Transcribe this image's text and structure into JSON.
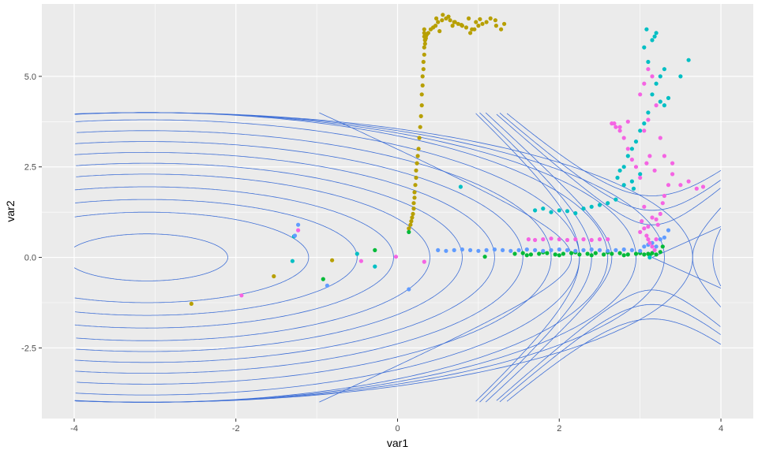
{
  "chart_data": {
    "type": "scatter",
    "title": "",
    "xlabel": "var1",
    "ylabel": "var2",
    "xlim": [
      -4.4,
      4.4
    ],
    "ylim": [
      -4.45,
      7.0
    ],
    "x_ticks": [
      -4,
      -2,
      0,
      2,
      4
    ],
    "x_tick_labels": [
      "-4",
      "-2",
      "0",
      "2",
      "4"
    ],
    "y_ticks": [
      -2.5,
      0,
      2.5,
      5
    ],
    "y_tick_labels": [
      "-2.5",
      "0.0",
      "2.5",
      "5.0"
    ],
    "grid": true,
    "legend": "none",
    "panel_color": "#ebebeb",
    "grid_color": "#ffffff",
    "contour_color": "#3f6fd6",
    "contours": [
      {
        "type": "ellipse",
        "cx": -3.1,
        "cy": 0.0,
        "rx": 1.0,
        "ry": 0.65
      },
      {
        "type": "ellipse",
        "cx": -3.1,
        "cy": 0.0,
        "rx": 2.0,
        "ry": 1.25
      },
      {
        "type": "ellipse",
        "cx": -3.1,
        "cy": 0.0,
        "rx": 2.6,
        "ry": 1.6
      },
      {
        "type": "ellipse",
        "cx": -3.1,
        "cy": 0.0,
        "rx": 3.05,
        "ry": 1.95
      },
      {
        "type": "ellipse",
        "cx": -3.1,
        "cy": 0.0,
        "rx": 3.5,
        "ry": 2.3
      },
      {
        "type": "ellipse",
        "cx": -3.1,
        "cy": 0.0,
        "rx": 3.9,
        "ry": 2.6
      },
      {
        "type": "ellipse",
        "cx": -3.1,
        "cy": 0.0,
        "rx": 4.3,
        "ry": 2.9
      },
      {
        "type": "ellipse",
        "cx": -3.1,
        "cy": 0.0,
        "rx": 4.65,
        "ry": 3.2
      },
      {
        "type": "ellipse",
        "cx": -3.1,
        "cy": 0.0,
        "rx": 5.0,
        "ry": 3.5
      },
      {
        "type": "ellipse",
        "cx": -3.1,
        "cy": 0.0,
        "rx": 5.35,
        "ry": 3.8
      },
      {
        "type": "ellipse",
        "cx": -3.1,
        "cy": 0.0,
        "rx": 5.7,
        "ry": 4.0
      },
      {
        "type": "ellipse",
        "cx": -3.1,
        "cy": 0.0,
        "rx": 6.05,
        "ry": 4.0
      },
      {
        "type": "ellipse",
        "cx": -3.1,
        "cy": 0.0,
        "rx": 6.4,
        "ry": 4.0
      },
      {
        "type": "ellipse",
        "cx": -3.1,
        "cy": 0.0,
        "rx": 6.75,
        "ry": 4.0
      },
      {
        "type": "hyperbola",
        "cx": 3.15,
        "cy": 0.0,
        "a": 1.0,
        "b": 1.0,
        "k": -1
      },
      {
        "type": "hyperbola",
        "cx": 3.15,
        "cy": 0.0,
        "a": 0.45,
        "b": 0.9,
        "k": 1
      },
      {
        "type": "hyperbola",
        "cx": 3.15,
        "cy": 0.0,
        "a": 0.65,
        "b": 1.3,
        "k": 1
      },
      {
        "type": "hyperbola",
        "cx": 3.15,
        "cy": 0.0,
        "a": 0.85,
        "b": 1.7,
        "k": 1
      },
      {
        "type": "hyperbola",
        "cx": 3.15,
        "cy": 0.0,
        "a": 0.5,
        "b": 1.0,
        "k": -1
      },
      {
        "type": "hyperbola",
        "cx": 3.15,
        "cy": 0.0,
        "a": 0.75,
        "b": 1.5,
        "k": -1
      },
      {
        "type": "hyperbola",
        "cx": 3.15,
        "cy": 0.0,
        "a": 0.9,
        "b": 1.8,
        "k": -1
      },
      {
        "type": "line",
        "x1": 3.15,
        "y1": 0.0,
        "x2": 4.0,
        "y2": 0.85
      },
      {
        "type": "line",
        "x1": 3.15,
        "y1": 0.0,
        "x2": 4.0,
        "y2": -0.85
      }
    ],
    "series": [
      {
        "color": "#b79f00",
        "x": [
          -2.55,
          -1.53,
          -0.81,
          0.14,
          0.16,
          0.17,
          0.18,
          0.19,
          0.2,
          0.2,
          0.21,
          0.21,
          0.22,
          0.23,
          0.23,
          0.24,
          0.25,
          0.26,
          0.27,
          0.28,
          0.29,
          0.3,
          0.3,
          0.31,
          0.31,
          0.32,
          0.32,
          0.33,
          0.33,
          0.34,
          0.34,
          0.33,
          0.33,
          0.33,
          0.34,
          0.35,
          0.36,
          0.38,
          0.41,
          0.44,
          0.47,
          0.5,
          0.55,
          0.6,
          0.65,
          0.7,
          0.75,
          0.8,
          0.85,
          0.9,
          0.95,
          1.0,
          1.05,
          1.1,
          1.15,
          1.22,
          1.28,
          1.32,
          0.35,
          0.48,
          0.56,
          0.63,
          0.71,
          0.79,
          0.92,
          1.02,
          1.21,
          0.52,
          0.68,
          0.88,
          0.97
        ],
        "y": [
          -1.28,
          -0.52,
          -0.08,
          0.8,
          0.9,
          1.0,
          1.1,
          1.2,
          1.35,
          1.5,
          1.65,
          1.8,
          2.0,
          2.2,
          2.4,
          2.6,
          2.8,
          3.0,
          3.3,
          3.6,
          3.9,
          4.2,
          4.5,
          4.75,
          5.0,
          5.2,
          5.4,
          5.6,
          5.8,
          5.9,
          6.0,
          6.1,
          6.2,
          6.3,
          6.0,
          6.1,
          6.15,
          6.2,
          6.3,
          6.35,
          6.4,
          6.5,
          6.55,
          6.6,
          6.55,
          6.5,
          6.45,
          6.4,
          6.35,
          6.2,
          6.3,
          6.4,
          6.45,
          6.5,
          6.6,
          6.4,
          6.3,
          6.45,
          6.05,
          6.6,
          6.7,
          6.65,
          6.5,
          6.42,
          6.3,
          6.58,
          6.55,
          6.25,
          6.4,
          6.6,
          6.5
        ]
      },
      {
        "color": "#00ba38",
        "x": [
          -0.92,
          -0.28,
          0.14,
          1.08,
          1.45,
          1.55,
          1.65,
          1.75,
          1.85,
          1.95,
          2.05,
          2.15,
          2.25,
          2.35,
          2.45,
          2.55,
          2.65,
          2.75,
          2.85,
          2.95,
          3.0,
          3.05,
          3.1,
          3.15,
          3.2,
          3.25,
          3.28,
          1.6,
          1.8,
          2.0,
          2.2,
          2.4,
          2.6,
          2.8,
          3.12
        ],
        "y": [
          -0.6,
          0.2,
          0.7,
          0.02,
          0.1,
          0.12,
          0.08,
          0.1,
          0.12,
          0.08,
          0.1,
          0.12,
          0.08,
          0.1,
          0.12,
          0.08,
          0.1,
          0.12,
          0.08,
          0.1,
          0.12,
          0.08,
          0.1,
          0.12,
          0.08,
          0.15,
          0.3,
          0.06,
          0.14,
          0.06,
          0.14,
          0.06,
          0.14,
          0.06,
          0.05
        ]
      },
      {
        "color": "#00bfc4",
        "x": [
          -1.3,
          -1.28,
          -0.5,
          -0.28,
          0.78,
          1.7,
          1.8,
          1.9,
          2.0,
          2.1,
          2.2,
          2.3,
          2.4,
          2.5,
          2.6,
          2.7,
          2.8,
          2.9,
          2.72,
          2.75,
          2.8,
          2.85,
          2.9,
          2.95,
          3.0,
          3.05,
          3.1,
          3.15,
          3.2,
          3.25,
          3.3,
          3.1,
          3.05,
          3.15,
          3.2,
          3.08,
          3.18,
          3.5,
          3.6,
          3.3,
          3.35,
          3.25,
          2.92,
          3.0,
          3.12
        ],
        "y": [
          -0.1,
          0.58,
          0.1,
          -0.25,
          1.95,
          1.3,
          1.35,
          1.25,
          1.3,
          1.28,
          1.22,
          1.35,
          1.4,
          1.45,
          1.5,
          1.6,
          2.0,
          2.1,
          2.2,
          2.4,
          2.5,
          2.8,
          3.0,
          3.2,
          3.5,
          3.7,
          4.0,
          4.5,
          4.8,
          5.0,
          5.2,
          5.4,
          5.8,
          6.0,
          6.2,
          6.3,
          6.1,
          5.0,
          5.45,
          4.2,
          4.4,
          4.3,
          1.9,
          2.3,
          0.0
        ]
      },
      {
        "color": "#619cff",
        "x": [
          -1.23,
          -1.27,
          -0.87,
          0.14,
          0.5,
          0.6,
          0.7,
          0.8,
          0.9,
          1.0,
          1.1,
          1.2,
          1.3,
          1.4,
          1.5,
          1.6,
          1.7,
          1.8,
          1.9,
          2.0,
          2.1,
          2.2,
          2.3,
          2.4,
          2.5,
          2.6,
          2.7,
          2.8,
          2.9,
          3.0,
          3.05,
          3.1,
          3.15,
          3.2,
          3.25,
          3.3,
          3.35
        ],
        "y": [
          0.9,
          0.6,
          -0.78,
          -0.88,
          0.2,
          0.18,
          0.2,
          0.22,
          0.2,
          0.18,
          0.2,
          0.22,
          0.2,
          0.18,
          0.2,
          0.22,
          0.2,
          0.18,
          0.2,
          0.22,
          0.2,
          0.18,
          0.2,
          0.22,
          0.2,
          0.18,
          0.2,
          0.22,
          0.2,
          0.18,
          0.3,
          0.35,
          0.4,
          0.3,
          0.5,
          0.55,
          0.75
        ]
      },
      {
        "color": "#f564e3",
        "x": [
          -1.93,
          -1.23,
          -0.45,
          -0.02,
          0.33,
          1.62,
          1.7,
          1.8,
          1.9,
          2.0,
          2.1,
          2.2,
          2.3,
          2.4,
          2.5,
          2.6,
          2.65,
          2.7,
          2.75,
          2.8,
          2.85,
          2.9,
          2.95,
          3.0,
          3.02,
          3.05,
          3.08,
          3.1,
          3.12,
          3.15,
          3.18,
          3.2,
          3.22,
          3.25,
          3.28,
          3.3,
          3.35,
          3.4,
          3.5,
          3.6,
          3.7,
          3.78,
          3.05,
          3.1,
          3.15,
          3.0,
          3.2,
          3.1,
          3.05,
          3.25,
          3.12,
          3.08,
          3.18,
          2.68,
          2.75,
          2.85,
          3.3,
          3.4,
          3.15,
          3.05,
          3.0,
          3.1,
          3.2
        ],
        "y": [
          -1.05,
          0.75,
          -0.1,
          0.02,
          -0.12,
          0.5,
          0.48,
          0.5,
          0.52,
          0.5,
          0.48,
          0.5,
          0.5,
          0.48,
          0.5,
          0.5,
          3.7,
          3.6,
          3.5,
          3.3,
          3.0,
          2.7,
          2.5,
          2.2,
          1.0,
          0.8,
          0.6,
          0.5,
          0.4,
          0.3,
          0.2,
          0.5,
          0.9,
          1.2,
          1.5,
          1.7,
          2.0,
          2.3,
          2.0,
          2.1,
          1.9,
          1.95,
          4.8,
          5.2,
          5.0,
          4.5,
          4.2,
          3.8,
          3.5,
          3.3,
          2.8,
          2.6,
          2.4,
          3.7,
          3.6,
          3.75,
          2.8,
          2.6,
          1.1,
          1.4,
          0.7,
          0.85,
          1.05
        ]
      }
    ]
  }
}
